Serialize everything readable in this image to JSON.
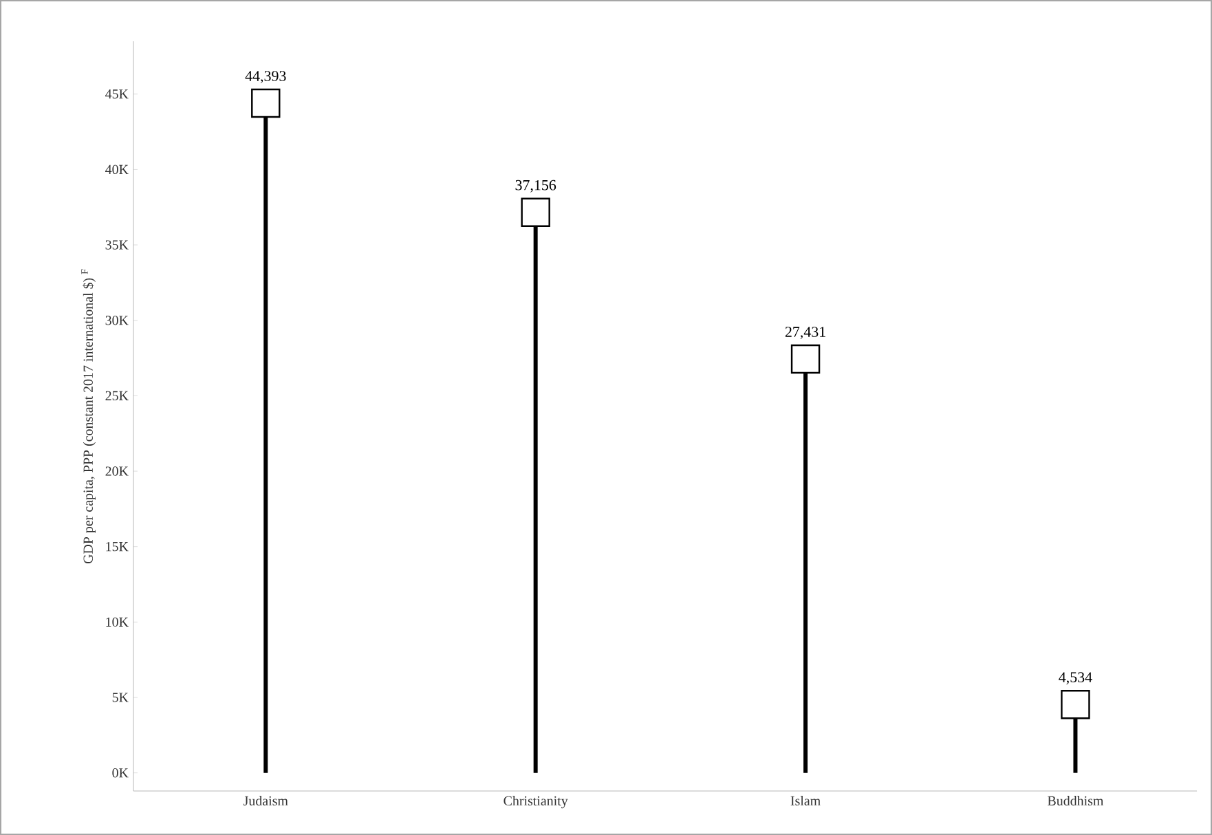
{
  "chart_data": {
    "type": "lollipop",
    "ylabel": "GDP per capita, PPP (constant 2017 international $) $^{F}$",
    "categories": [
      "Judaism",
      "Christianity",
      "Islam",
      "Buddhism"
    ],
    "values": [
      44393,
      37156,
      27431,
      4534
    ],
    "value_labels": [
      "44,393",
      "37,156",
      "27,431",
      "4,534"
    ],
    "color": "#000000",
    "marker": "square",
    "ylim": [
      -1200,
      48500
    ],
    "yticks": [
      {
        "value": 0,
        "label": "0K"
      },
      {
        "value": 5000,
        "label": "5K"
      },
      {
        "value": 10000,
        "label": "10K"
      },
      {
        "value": 15000,
        "label": "15K"
      },
      {
        "value": 20000,
        "label": "20K"
      },
      {
        "value": 25000,
        "label": "25K"
      },
      {
        "value": 30000,
        "label": "30K"
      },
      {
        "value": 35000,
        "label": "35K"
      },
      {
        "value": 40000,
        "label": "40K"
      },
      {
        "value": 45000,
        "label": "45K"
      }
    ]
  }
}
